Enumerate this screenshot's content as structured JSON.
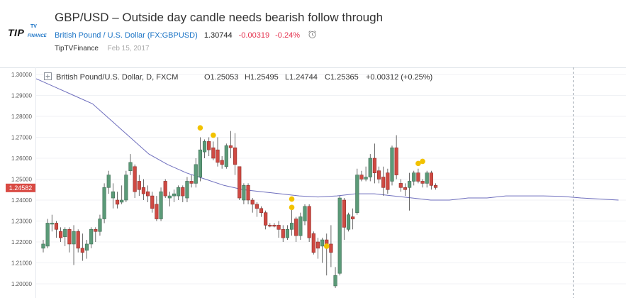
{
  "header": {
    "logo_text": "TIP",
    "logo_tv": "TV",
    "logo_sub": "FINANCE",
    "title": "GBP/USD – Outside day candle needs bearish follow through",
    "symbol_name": "British Pound / U.S. Dollar",
    "symbol_code": "(FX:GBPUSD)",
    "last_price": "1.30744",
    "change": "-0.00319",
    "change_pct": "-0.24%",
    "author": "TipTVFinance",
    "date": "Feb 15, 2017"
  },
  "legend": {
    "expand_icon": "⊞",
    "symbol": "British Pound/U.S. Dollar, D, FXCM",
    "o": "O1.25053",
    "h": "H1.25495",
    "l": "L1.24744",
    "c": "C1.25365",
    "change": "+0.00312 (+0.25%)"
  },
  "colors": {
    "up": "#5b9a78",
    "down": "#cf4a43",
    "ma": "#6e6ebd",
    "marker": "#f2c200",
    "price_tag": "#d94a43"
  },
  "chart_data": {
    "type": "candlestick",
    "instrument": "British Pound/U.S. Dollar",
    "timeframe": "D",
    "ylim": [
      1.195,
      1.302
    ],
    "yticks": [
      "1.20000",
      "1.21000",
      "1.22000",
      "1.23000",
      "1.24000",
      "1.25000",
      "1.26000",
      "1.27000",
      "1.28000",
      "1.29000",
      "1.30000"
    ],
    "current_price": "1.24582",
    "candles": [
      {
        "o": 1.217,
        "h": 1.221,
        "l": 1.215,
        "c": 1.219
      },
      {
        "o": 1.218,
        "h": 1.231,
        "l": 1.217,
        "c": 1.229
      },
      {
        "o": 1.2285,
        "h": 1.233,
        "l": 1.225,
        "c": 1.229
      },
      {
        "o": 1.229,
        "h": 1.23,
        "l": 1.222,
        "c": 1.226
      },
      {
        "o": 1.225,
        "h": 1.227,
        "l": 1.22,
        "c": 1.222
      },
      {
        "o": 1.2225,
        "h": 1.227,
        "l": 1.218,
        "c": 1.226
      },
      {
        "o": 1.226,
        "h": 1.227,
        "l": 1.215,
        "c": 1.219
      },
      {
        "o": 1.219,
        "h": 1.228,
        "l": 1.209,
        "c": 1.225
      },
      {
        "o": 1.225,
        "h": 1.226,
        "l": 1.215,
        "c": 1.217
      },
      {
        "o": 1.217,
        "h": 1.224,
        "l": 1.211,
        "c": 1.215
      },
      {
        "o": 1.216,
        "h": 1.221,
        "l": 1.212,
        "c": 1.219
      },
      {
        "o": 1.219,
        "h": 1.227,
        "l": 1.217,
        "c": 1.226
      },
      {
        "o": 1.226,
        "h": 1.227,
        "l": 1.22,
        "c": 1.225
      },
      {
        "o": 1.225,
        "h": 1.233,
        "l": 1.223,
        "c": 1.231
      },
      {
        "o": 1.231,
        "h": 1.248,
        "l": 1.229,
        "c": 1.246
      },
      {
        "o": 1.246,
        "h": 1.254,
        "l": 1.243,
        "c": 1.252
      },
      {
        "o": 1.241,
        "h": 1.248,
        "l": 1.236,
        "c": 1.244
      },
      {
        "o": 1.24,
        "h": 1.244,
        "l": 1.236,
        "c": 1.238
      },
      {
        "o": 1.239,
        "h": 1.247,
        "l": 1.238,
        "c": 1.24
      },
      {
        "o": 1.24,
        "h": 1.254,
        "l": 1.239,
        "c": 1.252
      },
      {
        "o": 1.254,
        "h": 1.262,
        "l": 1.252,
        "c": 1.258
      },
      {
        "o": 1.256,
        "h": 1.257,
        "l": 1.241,
        "c": 1.244
      },
      {
        "o": 1.249,
        "h": 1.252,
        "l": 1.242,
        "c": 1.245
      },
      {
        "o": 1.246,
        "h": 1.25,
        "l": 1.24,
        "c": 1.243
      },
      {
        "o": 1.244,
        "h": 1.247,
        "l": 1.239,
        "c": 1.242
      },
      {
        "o": 1.242,
        "h": 1.244,
        "l": 1.234,
        "c": 1.236
      },
      {
        "o": 1.238,
        "h": 1.242,
        "l": 1.23,
        "c": 1.231
      },
      {
        "o": 1.231,
        "h": 1.246,
        "l": 1.23,
        "c": 1.244
      },
      {
        "o": 1.249,
        "h": 1.25,
        "l": 1.241,
        "c": 1.242
      },
      {
        "o": 1.241,
        "h": 1.244,
        "l": 1.237,
        "c": 1.242
      },
      {
        "o": 1.242,
        "h": 1.245,
        "l": 1.239,
        "c": 1.243
      },
      {
        "o": 1.242,
        "h": 1.247,
        "l": 1.24,
        "c": 1.246
      },
      {
        "o": 1.246,
        "h": 1.247,
        "l": 1.239,
        "c": 1.242
      },
      {
        "o": 1.241,
        "h": 1.251,
        "l": 1.239,
        "c": 1.249
      },
      {
        "o": 1.249,
        "h": 1.252,
        "l": 1.246,
        "c": 1.248
      },
      {
        "o": 1.248,
        "h": 1.26,
        "l": 1.246,
        "c": 1.257
      },
      {
        "o": 1.251,
        "h": 1.27,
        "l": 1.249,
        "c": 1.264
      },
      {
        "o": 1.263,
        "h": 1.269,
        "l": 1.26,
        "c": 1.268
      },
      {
        "o": 1.268,
        "h": 1.27,
        "l": 1.261,
        "c": 1.264
      },
      {
        "o": 1.265,
        "h": 1.268,
        "l": 1.259,
        "c": 1.26
      },
      {
        "o": 1.264,
        "h": 1.27,
        "l": 1.256,
        "c": 1.258
      },
      {
        "o": 1.259,
        "h": 1.261,
        "l": 1.255,
        "c": 1.257
      },
      {
        "o": 1.256,
        "h": 1.267,
        "l": 1.255,
        "c": 1.266
      },
      {
        "o": 1.266,
        "h": 1.273,
        "l": 1.26,
        "c": 1.265
      },
      {
        "o": 1.265,
        "h": 1.272,
        "l": 1.252,
        "c": 1.257
      },
      {
        "o": 1.256,
        "h": 1.256,
        "l": 1.24,
        "c": 1.241
      },
      {
        "o": 1.24,
        "h": 1.248,
        "l": 1.238,
        "c": 1.247
      },
      {
        "o": 1.247,
        "h": 1.248,
        "l": 1.238,
        "c": 1.24
      },
      {
        "o": 1.24,
        "h": 1.241,
        "l": 1.234,
        "c": 1.238
      },
      {
        "o": 1.238,
        "h": 1.239,
        "l": 1.232,
        "c": 1.236
      },
      {
        "o": 1.236,
        "h": 1.237,
        "l": 1.232,
        "c": 1.234
      },
      {
        "o": 1.234,
        "h": 1.235,
        "l": 1.226,
        "c": 1.228
      },
      {
        "o": 1.228,
        "h": 1.229,
        "l": 1.227,
        "c": 1.2275
      },
      {
        "o": 1.228,
        "h": 1.229,
        "l": 1.227,
        "c": 1.2275
      },
      {
        "o": 1.228,
        "h": 1.23,
        "l": 1.222,
        "c": 1.226
      },
      {
        "o": 1.226,
        "h": 1.228,
        "l": 1.22,
        "c": 1.222
      },
      {
        "o": 1.222,
        "h": 1.228,
        "l": 1.221,
        "c": 1.226
      },
      {
        "o": 1.226,
        "h": 1.237,
        "l": 1.223,
        "c": 1.229
      },
      {
        "o": 1.231,
        "h": 1.232,
        "l": 1.22,
        "c": 1.223
      },
      {
        "o": 1.223,
        "h": 1.234,
        "l": 1.221,
        "c": 1.232
      },
      {
        "o": 1.23,
        "h": 1.238,
        "l": 1.228,
        "c": 1.237
      },
      {
        "o": 1.237,
        "h": 1.238,
        "l": 1.22,
        "c": 1.222
      },
      {
        "o": 1.224,
        "h": 1.225,
        "l": 1.214,
        "c": 1.215
      },
      {
        "o": 1.22,
        "h": 1.222,
        "l": 1.212,
        "c": 1.217
      },
      {
        "o": 1.218,
        "h": 1.222,
        "l": 1.21,
        "c": 1.221
      },
      {
        "o": 1.221,
        "h": 1.224,
        "l": 1.204,
        "c": 1.217
      },
      {
        "o": 1.219,
        "h": 1.228,
        "l": 1.208,
        "c": 1.215
      },
      {
        "o": 1.199,
        "h": 1.208,
        "l": 1.198,
        "c": 1.204
      },
      {
        "o": 1.205,
        "h": 1.242,
        "l": 1.204,
        "c": 1.241
      },
      {
        "o": 1.24,
        "h": 1.241,
        "l": 1.221,
        "c": 1.227
      },
      {
        "o": 1.226,
        "h": 1.234,
        "l": 1.225,
        "c": 1.233
      },
      {
        "o": 1.232,
        "h": 1.236,
        "l": 1.226,
        "c": 1.231
      },
      {
        "o": 1.234,
        "h": 1.255,
        "l": 1.233,
        "c": 1.252
      },
      {
        "o": 1.252,
        "h": 1.254,
        "l": 1.249,
        "c": 1.25
      },
      {
        "o": 1.25,
        "h": 1.256,
        "l": 1.249,
        "c": 1.251
      },
      {
        "o": 1.251,
        "h": 1.262,
        "l": 1.249,
        "c": 1.26
      },
      {
        "o": 1.26,
        "h": 1.267,
        "l": 1.248,
        "c": 1.253
      },
      {
        "o": 1.254,
        "h": 1.256,
        "l": 1.248,
        "c": 1.25
      },
      {
        "o": 1.251,
        "h": 1.256,
        "l": 1.242,
        "c": 1.246
      },
      {
        "o": 1.253,
        "h": 1.255,
        "l": 1.243,
        "c": 1.245
      },
      {
        "o": 1.249,
        "h": 1.266,
        "l": 1.247,
        "c": 1.265
      },
      {
        "o": 1.265,
        "h": 1.271,
        "l": 1.25,
        "c": 1.252
      },
      {
        "o": 1.248,
        "h": 1.25,
        "l": 1.244,
        "c": 1.246
      },
      {
        "o": 1.246,
        "h": 1.248,
        "l": 1.242,
        "c": 1.245
      },
      {
        "o": 1.246,
        "h": 1.253,
        "l": 1.235,
        "c": 1.249
      },
      {
        "o": 1.249,
        "h": 1.254,
        "l": 1.247,
        "c": 1.253
      },
      {
        "o": 1.253,
        "h": 1.255,
        "l": 1.248,
        "c": 1.249
      },
      {
        "o": 1.249,
        "h": 1.25,
        "l": 1.246,
        "c": 1.248
      },
      {
        "o": 1.248,
        "h": 1.254,
        "l": 1.246,
        "c": 1.253
      },
      {
        "o": 1.253,
        "h": 1.254,
        "l": 1.245,
        "c": 1.247
      },
      {
        "o": 1.247,
        "h": 1.248,
        "l": 1.245,
        "c": 1.246
      }
    ],
    "moving_average": [
      [
        0,
        1.298
      ],
      [
        5,
        1.294
      ],
      [
        10,
        1.29
      ],
      [
        15,
        1.286
      ],
      [
        20,
        1.278
      ],
      [
        25,
        1.27
      ],
      [
        30,
        1.262
      ],
      [
        35,
        1.257
      ],
      [
        40,
        1.253
      ],
      [
        45,
        1.25
      ],
      [
        50,
        1.247
      ],
      [
        55,
        1.245
      ],
      [
        60,
        1.244
      ],
      [
        65,
        1.243
      ],
      [
        70,
        1.242
      ],
      [
        75,
        1.2415
      ],
      [
        80,
        1.242
      ],
      [
        85,
        1.243
      ],
      [
        90,
        1.243
      ],
      [
        95,
        1.242
      ],
      [
        100,
        1.241
      ],
      [
        105,
        1.24
      ],
      [
        110,
        1.24
      ],
      [
        115,
        1.241
      ],
      [
        120,
        1.241
      ],
      [
        125,
        1.242
      ],
      [
        130,
        1.242
      ],
      [
        135,
        1.242
      ],
      [
        140,
        1.2418
      ],
      [
        145,
        1.241
      ],
      [
        150,
        1.2405
      ],
      [
        155,
        1.24
      ]
    ],
    "markers": [
      {
        "index": 36,
        "y": 1.2745
      },
      {
        "index": 39,
        "y": 1.271
      },
      {
        "index": 57,
        "y": 1.2405
      },
      {
        "index": 57,
        "y": 1.2365
      },
      {
        "index": 65,
        "y": 1.218
      },
      {
        "index": 86,
        "y": 1.2575
      },
      {
        "index": 87,
        "y": 1.2585
      }
    ]
  }
}
